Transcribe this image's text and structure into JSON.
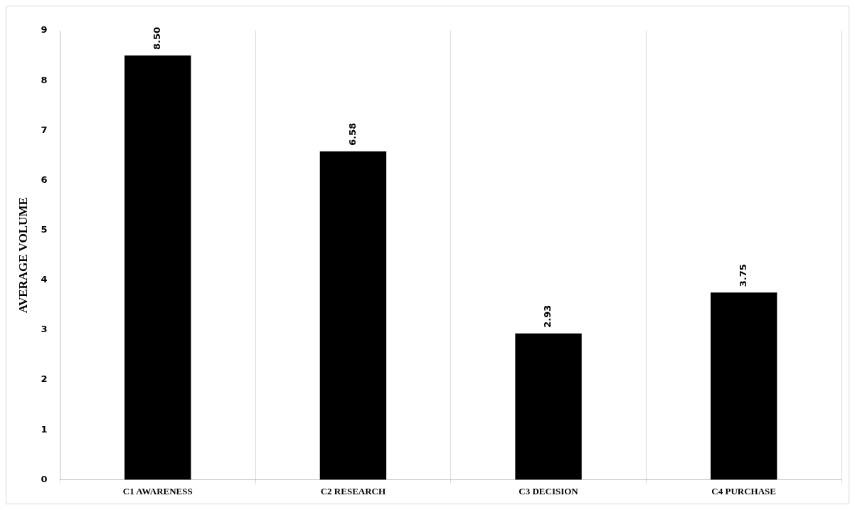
{
  "chart_data": {
    "type": "bar",
    "ylabel": "AVERAGE VOLUME",
    "categories": [
      "C1 AWARENESS",
      "C2 RESEARCH",
      "C3 DECISION",
      "C4 PURCHASE"
    ],
    "values": [
      8.5,
      6.58,
      2.93,
      3.75
    ],
    "value_labels": [
      "8.50",
      "6.58",
      "2.93",
      "3.75"
    ],
    "color": "#000000",
    "ylim": [
      0,
      9
    ],
    "yticks": [
      0,
      1,
      2,
      3,
      4,
      5,
      6,
      7,
      8,
      9
    ],
    "grid": "x",
    "legend": false
  }
}
